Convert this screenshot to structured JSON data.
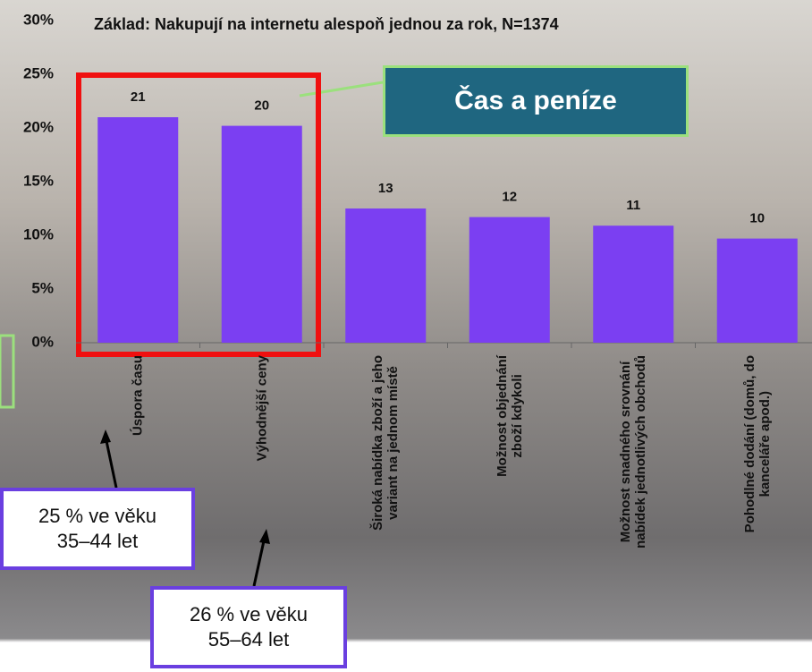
{
  "chart_data": {
    "type": "bar",
    "title": "Základ: Nakupují na internetu alespoň jednou za rok, N=1374",
    "categories": [
      "Úspora času",
      "Výhodnější ceny",
      "Široká nabídka zboží a jeho\nvariant na jednom místě",
      "Možnost objednání\nzboží kdykoli",
      "Možnost snadného srovnání\nnabídek jednotlivých obchodů",
      "Pohodlné dodání (domů, do\nkanceláře apod.)"
    ],
    "values": [
      21.0,
      20.2,
      12.5,
      11.7,
      10.9,
      9.7
    ],
    "value_labels": [
      "21",
      "20",
      "13",
      "12",
      "11",
      "10"
    ],
    "color": "#7b3ff2",
    "ylim": [
      0,
      30
    ],
    "yticks": [
      {
        "value": 0,
        "label": "0%"
      },
      {
        "value": 5,
        "label": "5%"
      },
      {
        "value": 10,
        "label": "10%"
      },
      {
        "value": 15,
        "label": "15%"
      },
      {
        "value": 20,
        "label": "20%"
      },
      {
        "value": 25,
        "label": "25%"
      },
      {
        "value": 30,
        "label": "30%"
      }
    ],
    "annotations": {
      "highlight": "Čas a peníze",
      "note_1": "25 % ve věku\n35–44 let",
      "note_2": "26 % ve věku\n55–64 let"
    }
  }
}
